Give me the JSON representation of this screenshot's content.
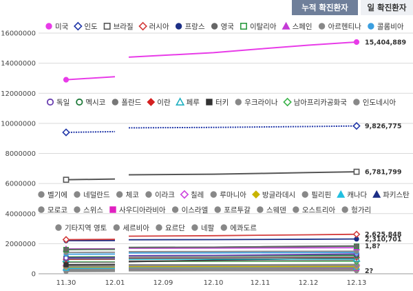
{
  "tabs": [
    {
      "label": "누적 확진환자",
      "active": true
    },
    {
      "label": "일 확진환자",
      "active": false
    }
  ],
  "chart_data": {
    "type": "line",
    "categories": [
      "11.30",
      "12.01",
      "12.09",
      "12.10",
      "12.11",
      "12.12",
      "12.13"
    ],
    "ylim": [
      0,
      16000000
    ],
    "ytick_labels": [
      "0",
      "2000000",
      "4000000",
      "6000000",
      "8000000",
      "10000000",
      "12000000",
      "14000000",
      "16000000"
    ],
    "grid": true,
    "series": [
      {
        "name": "미국",
        "color": "#e83be8",
        "marker": "circle-filled",
        "values": [
          12900000,
          13100000,
          14400000,
          14700000,
          14950000,
          15200000,
          15404889
        ],
        "end_label": "15,404,889"
      },
      {
        "name": "인도",
        "color": "#2137a8",
        "marker": "diamond-open",
        "values": [
          9400000,
          9450000,
          9700000,
          9730000,
          9760000,
          9790000,
          9826775
        ],
        "end_label": "9,826,775"
      },
      {
        "name": "브라질",
        "color": "#555555",
        "marker": "square-open",
        "values": [
          6250000,
          6300000,
          6580000,
          6620000,
          6670000,
          6730000,
          6781799
        ],
        "end_label": "6,781,799"
      },
      {
        "name": "러시아",
        "color": "#d33b3b",
        "marker": "diamond-open",
        "values": [
          2270000,
          2290000,
          2500000,
          2530000,
          2560000,
          2590000,
          2625848
        ],
        "end_label": "2,625,848"
      },
      {
        "name": "프랑스",
        "color": "#1c2f86",
        "marker": "circle-filled",
        "values": [
          2200000,
          2210000,
          2260000,
          2270000,
          2280000,
          2295000,
          2310701
        ],
        "end_label": "2,310,701"
      },
      {
        "name": "영국",
        "color": "#666666",
        "marker": "circle-filled",
        "values": [
          1620000,
          1640000,
          1750000,
          1770000,
          1800000,
          1830000,
          1850000
        ],
        "end_label": "1,8?"
      },
      {
        "name": "이탈리아",
        "color": "#2a9a3f",
        "marker": "square-open",
        "values": [
          1600000,
          1620000,
          1750000,
          1770000,
          1790000,
          1810000,
          1830000
        ],
        "end_label": ""
      },
      {
        "name": "스페인",
        "color": "#c43bd6",
        "marker": "triangle-filled",
        "values": [
          1650000,
          1660000,
          1700000,
          1710000,
          1720000,
          1725000,
          1730000
        ],
        "end_label": ""
      },
      {
        "name": "아르헨티나",
        "color": "#888888",
        "marker": "circle-filled",
        "values": [
          1420000,
          1430000,
          1470000,
          1480000,
          1490000,
          1495000,
          1500000
        ],
        "end_label": ""
      },
      {
        "name": "콜롬비아",
        "color": "#3b9fe0",
        "marker": "circle-filled",
        "values": [
          1300000,
          1310000,
          1380000,
          1390000,
          1400000,
          1410000,
          1420000
        ],
        "end_label": ""
      },
      {
        "name": "독일",
        "color": "#6a3fb0",
        "marker": "circle-open",
        "values": [
          1050000,
          1070000,
          1200000,
          1220000,
          1250000,
          1290000,
          1320000
        ],
        "end_label": ""
      },
      {
        "name": "멕시코",
        "color": "#1f7a3a",
        "marker": "circle-open",
        "values": [
          1110000,
          1120000,
          1190000,
          1200000,
          1210000,
          1220000,
          1230000
        ],
        "end_label": ""
      },
      {
        "name": "폴란드",
        "color": "#777777",
        "marker": "circle-filled",
        "values": [
          990000,
          1000000,
          1080000,
          1090000,
          1100000,
          1110000,
          1120000
        ],
        "end_label": ""
      },
      {
        "name": "이란",
        "color": "#d42020",
        "marker": "diamond-filled",
        "values": [
          960000,
          970000,
          1050000,
          1060000,
          1070000,
          1080000,
          1090000
        ],
        "end_label": ""
      },
      {
        "name": "페루",
        "color": "#1fb0c0",
        "marker": "triangle-open",
        "values": [
          960000,
          962000,
          975000,
          977000,
          979000,
          981000,
          983000
        ],
        "end_label": ""
      },
      {
        "name": "터키",
        "color": "#333333",
        "marker": "square-filled",
        "values": [
          600000,
          620000,
          800000,
          900000,
          950000,
          1000000,
          1040000
        ],
        "end_label": ""
      },
      {
        "name": "우크라이나",
        "color": "#888888",
        "marker": "circle-filled",
        "values": [
          750000,
          760000,
          850000,
          860000,
          870000,
          880000,
          890000
        ],
        "end_label": ""
      },
      {
        "name": "남아프리카공화국",
        "color": "#3bb34a",
        "marker": "diamond-open",
        "values": [
          790000,
          792000,
          825000,
          828000,
          831000,
          834000,
          837000
        ],
        "end_label": ""
      },
      {
        "name": "인도네시아",
        "color": "#888888",
        "marker": "circle-filled",
        "values": [
          540000,
          545000,
          590000,
          595000,
          600000,
          605000,
          610000
        ],
        "end_label": ""
      },
      {
        "name": "벨기에",
        "color": "#888888",
        "marker": "circle-filled",
        "values": [
          580000,
          582000,
          600000,
          601000,
          602000,
          603000,
          604000
        ],
        "end_label": ""
      },
      {
        "name": "네덜란드",
        "color": "#888888",
        "marker": "circle-filled",
        "values": [
          520000,
          530000,
          580000,
          590000,
          600000,
          605000,
          610000
        ],
        "end_label": ""
      },
      {
        "name": "체코",
        "color": "#888888",
        "marker": "circle-filled",
        "values": [
          520000,
          525000,
          550000,
          555000,
          560000,
          565000,
          570000
        ],
        "end_label": ""
      },
      {
        "name": "이라크",
        "color": "#888888",
        "marker": "circle-filled",
        "values": [
          550000,
          552000,
          565000,
          566000,
          567000,
          568000,
          569000
        ],
        "end_label": ""
      },
      {
        "name": "칠레",
        "color": "#cc44dd",
        "marker": "diamond-open",
        "values": [
          550000,
          551000,
          565000,
          566000,
          567000,
          568000,
          569000
        ],
        "end_label": ""
      },
      {
        "name": "루마니아",
        "color": "#888888",
        "marker": "circle-filled",
        "values": [
          500000,
          505000,
          540000,
          545000,
          550000,
          555000,
          560000
        ],
        "end_label": ""
      },
      {
        "name": "방글라데시",
        "color": "#c8b400",
        "marker": "diamond-filled",
        "values": [
          465000,
          467000,
          480000,
          482000,
          484000,
          486000,
          488000
        ],
        "end_label": ""
      },
      {
        "name": "필리핀",
        "color": "#888888",
        "marker": "circle-filled",
        "values": [
          430000,
          432000,
          442000,
          443000,
          444000,
          445000,
          446000
        ],
        "end_label": ""
      },
      {
        "name": "캐나다",
        "color": "#22bfe0",
        "marker": "triangle-filled",
        "values": [
          370000,
          375000,
          420000,
          425000,
          430000,
          435000,
          440000
        ],
        "end_label": ""
      },
      {
        "name": "파키스탄",
        "color": "#1c2f86",
        "marker": "triangle-filled",
        "values": [
          400000,
          402000,
          430000,
          432000,
          434000,
          436000,
          438000
        ],
        "end_label": ""
      },
      {
        "name": "모로코",
        "color": "#888888",
        "marker": "circle-filled",
        "values": [
          360000,
          362000,
          385000,
          388000,
          390000,
          393000,
          396000
        ],
        "end_label": ""
      },
      {
        "name": "스위스",
        "color": "#888888",
        "marker": "circle-filled",
        "values": [
          320000,
          325000,
          360000,
          365000,
          370000,
          375000,
          380000
        ],
        "end_label": ""
      },
      {
        "name": "사우디아라비아",
        "color": "#e020c0",
        "marker": "square-filled",
        "values": [
          356000,
          357000,
          359000,
          359500,
          360000,
          360500,
          361000
        ],
        "end_label": ""
      },
      {
        "name": "이스라엘",
        "color": "#888888",
        "marker": "circle-filled",
        "values": [
          335000,
          336000,
          350000,
          352000,
          354000,
          356000,
          358000
        ],
        "end_label": ""
      },
      {
        "name": "포르투갈",
        "color": "#888888",
        "marker": "circle-filled",
        "values": [
          300000,
          305000,
          330000,
          335000,
          340000,
          345000,
          350000
        ],
        "end_label": ""
      },
      {
        "name": "스웨덴",
        "color": "#888888",
        "marker": "circle-filled",
        "values": [
          245000,
          250000,
          300000,
          305000,
          310000,
          315000,
          320000
        ],
        "end_label": ""
      },
      {
        "name": "오스트리아",
        "color": "#888888",
        "marker": "circle-filled",
        "values": [
          280000,
          285000,
          310000,
          312000,
          314000,
          316000,
          318000
        ],
        "end_label": ""
      },
      {
        "name": "헝가리",
        "color": "#888888",
        "marker": "circle-filled",
        "values": [
          210000,
          215000,
          255000,
          260000,
          265000,
          270000,
          275000
        ],
        "end_label": ""
      },
      {
        "name": "기타지역 영토",
        "color": "#888888",
        "marker": "circle-filled",
        "values": [
          180000,
          182000,
          200000,
          202000,
          204000,
          206000,
          208000
        ],
        "end_label": ""
      },
      {
        "name": "세르비아",
        "color": "#888888",
        "marker": "circle-filled",
        "values": [
          150000,
          155000,
          220000,
          225000,
          230000,
          235000,
          240000
        ],
        "end_label": ""
      },
      {
        "name": "요르단",
        "color": "#888888",
        "marker": "circle-filled",
        "values": [
          170000,
          175000,
          220000,
          224000,
          228000,
          232000,
          236000
        ],
        "end_label": ""
      },
      {
        "name": "네팔",
        "color": "#888888",
        "marker": "circle-filled",
        "values": [
          230000,
          232000,
          242000,
          243000,
          244000,
          245000,
          246000
        ],
        "end_label": ""
      },
      {
        "name": "에콰도르",
        "color": "#888888",
        "marker": "circle-filled",
        "values": [
          190000,
          191000,
          198000,
          199000,
          200000,
          201000,
          202000
        ],
        "end_label": "2?"
      }
    ],
    "legend_rows": [
      [
        0,
        1,
        2,
        3,
        4,
        5,
        6,
        7,
        8,
        9
      ],
      [
        10,
        11,
        12,
        13,
        14,
        15,
        16,
        17,
        18
      ],
      [
        19,
        20,
        21,
        22,
        23,
        24,
        25,
        26,
        27,
        28
      ],
      [
        29,
        30,
        31,
        32,
        33,
        34,
        35,
        36
      ],
      [
        37,
        38,
        39,
        40,
        41
      ]
    ]
  }
}
